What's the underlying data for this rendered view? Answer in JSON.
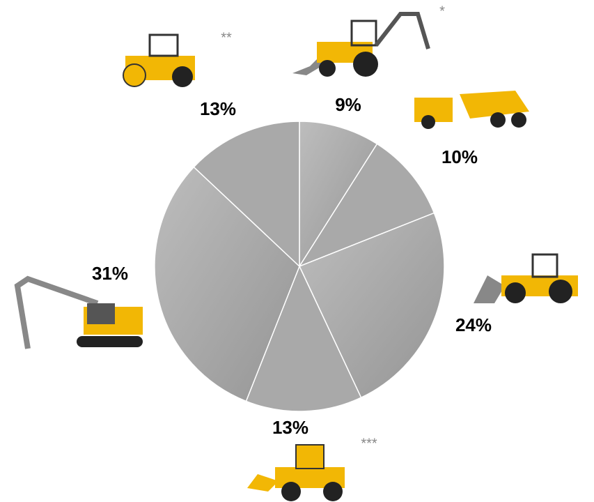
{
  "chart_data": {
    "type": "pie",
    "values": [
      9,
      10,
      24,
      13,
      31,
      13
    ],
    "value_labels": [
      "9%",
      "10%",
      "24%",
      "13%",
      "31%",
      "13%"
    ],
    "color": "#a9a9a9",
    "annotations": [
      "*",
      "**",
      "***"
    ]
  }
}
